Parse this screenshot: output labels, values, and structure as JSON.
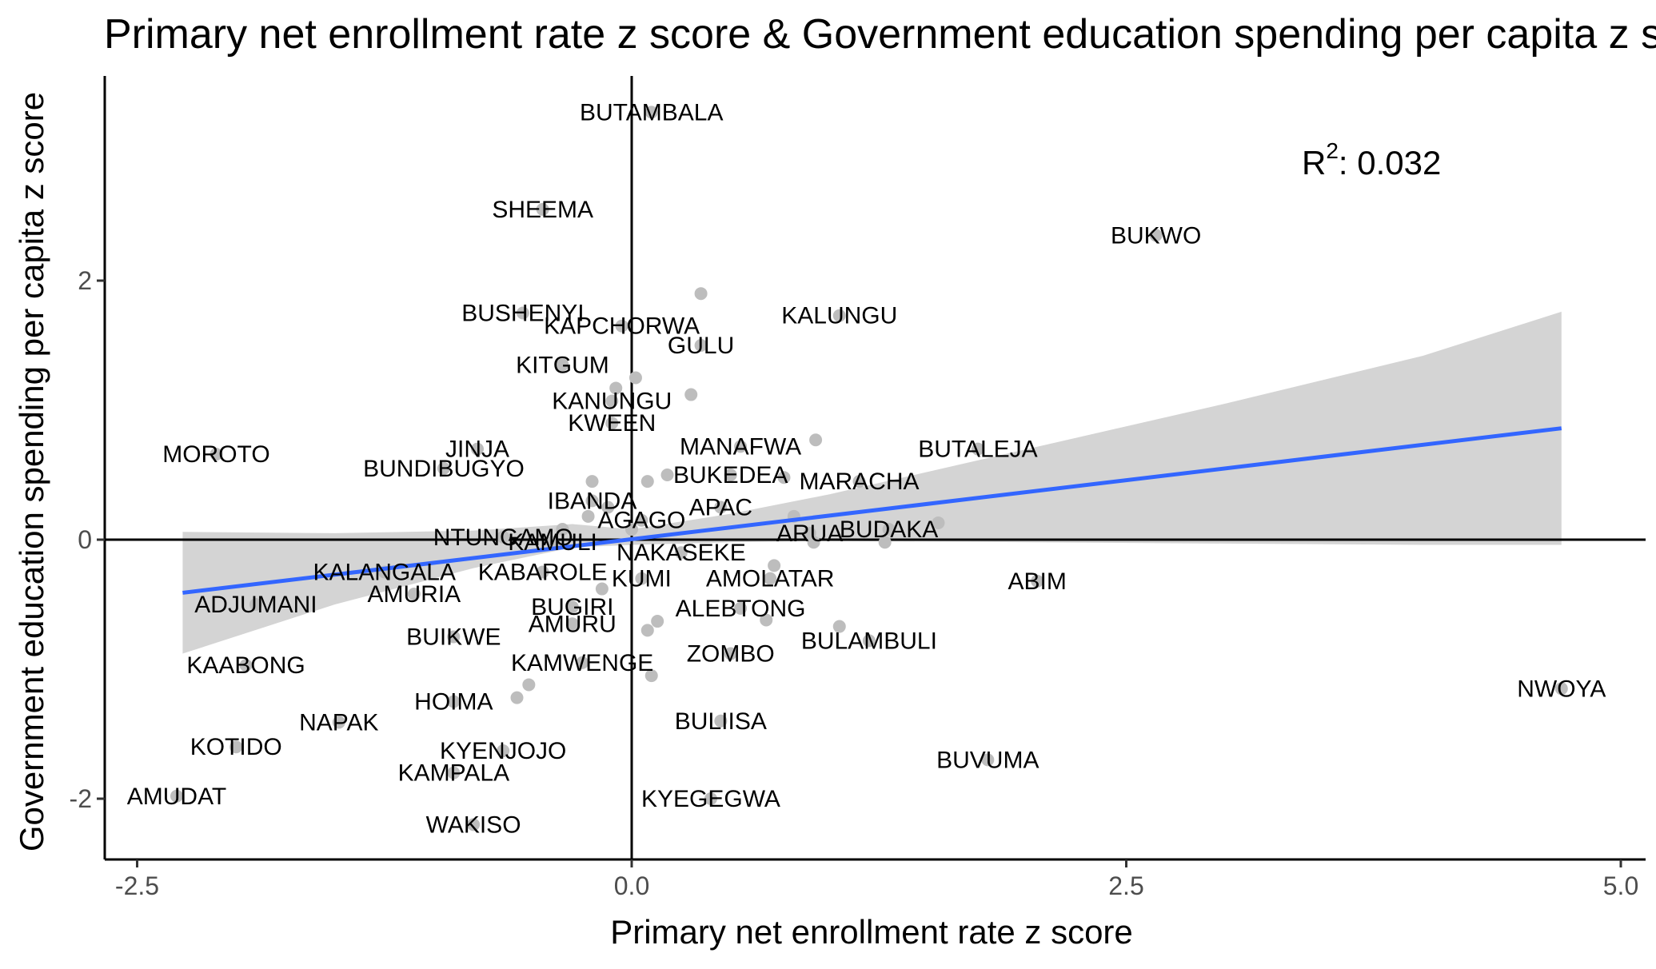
{
  "chart_data": {
    "type": "scatter",
    "title": "Primary net enrollment rate z score & Government education spending per capita z score",
    "xlabel": "Primary net enrollment rate z score",
    "ylabel": "Government education spending per capita z score",
    "xlim": [
      -2.5,
      5.0
    ],
    "ylim": [
      -2.5,
      3.5
    ],
    "x_ticks": [
      -2.5,
      0.0,
      2.5,
      5.0
    ],
    "x_tick_labels": [
      "-2.5",
      "0.0",
      "2.5",
      "5.0"
    ],
    "y_ticks": [
      -2,
      0,
      2
    ],
    "y_tick_labels": [
      "-2",
      "0",
      "2"
    ],
    "grid": false,
    "reference_lines": {
      "x": 0,
      "y": 0
    },
    "annotation": {
      "prefix": "R",
      "superscript": "2",
      "text": ": 0.032"
    },
    "regression": {
      "x_start": -2.27,
      "y_start": -0.41,
      "x_end": 4.7,
      "y_end": 0.86
    },
    "confidence_band": {
      "x": [
        -2.27,
        -1.5,
        -0.8,
        -0.3,
        0.0,
        0.5,
        1.0,
        2.0,
        3.0,
        4.0,
        4.7
      ],
      "lower": [
        -0.88,
        -0.5,
        -0.22,
        -0.06,
        -0.04,
        -0.02,
        -0.01,
        -0.02,
        -0.03,
        -0.04,
        -0.04
      ],
      "upper": [
        0.06,
        0.05,
        0.07,
        0.12,
        0.08,
        0.2,
        0.35,
        0.7,
        1.05,
        1.42,
        1.76
      ]
    },
    "points": [
      {
        "name": "BUTAMBALA",
        "x": 0.1,
        "y": 3.3
      },
      {
        "name": "SHEEMA",
        "x": -0.45,
        "y": 2.55
      },
      {
        "name": "BUKWO",
        "x": 2.65,
        "y": 2.35
      },
      {
        "name": "BUSHENYI",
        "x": -0.55,
        "y": 1.75
      },
      {
        "name": "KAPCHORWA",
        "x": -0.05,
        "y": 1.65
      },
      {
        "name": "KALUNGU",
        "x": 1.05,
        "y": 1.73
      },
      {
        "name": "GULU",
        "x": 0.35,
        "y": 1.5
      },
      {
        "name": "KITGUM",
        "x": -0.35,
        "y": 1.35
      },
      {
        "name": "KANUNGU",
        "x": -0.1,
        "y": 1.07
      },
      {
        "name": "KWEEN",
        "x": -0.1,
        "y": 0.9
      },
      {
        "name": "MOROTO",
        "x": -2.1,
        "y": 0.66
      },
      {
        "name": "JINJA",
        "x": -0.78,
        "y": 0.7
      },
      {
        "name": "MANAFWA",
        "x": 0.55,
        "y": 0.72
      },
      {
        "name": "BUTALEJA",
        "x": 1.75,
        "y": 0.7
      },
      {
        "name": "BUNDIBUGYO",
        "x": -0.95,
        "y": 0.55
      },
      {
        "name": "BUKEDEA",
        "x": 0.5,
        "y": 0.5
      },
      {
        "name": "MARACHA",
        "x": 1.15,
        "y": 0.45
      },
      {
        "name": "IBANDA",
        "x": -0.2,
        "y": 0.3
      },
      {
        "name": "APAC",
        "x": 0.45,
        "y": 0.25
      },
      {
        "name": "AGAGO",
        "x": 0.05,
        "y": 0.15
      },
      {
        "name": "NTUNGAMO",
        "x": -0.65,
        "y": 0.02
      },
      {
        "name": "KAMULI",
        "x": -0.4,
        "y": -0.02
      },
      {
        "name": "ARUA",
        "x": 0.9,
        "y": 0.05
      },
      {
        "name": "BUDAKA",
        "x": 1.3,
        "y": 0.08
      },
      {
        "name": "NAKASEKE",
        "x": 0.25,
        "y": -0.1
      },
      {
        "name": "KALANGALA",
        "x": -1.25,
        "y": -0.25
      },
      {
        "name": "KABAROLE",
        "x": -0.45,
        "y": -0.25
      },
      {
        "name": "KUMI",
        "x": 0.05,
        "y": -0.3
      },
      {
        "name": "AMOLATAR",
        "x": 0.7,
        "y": -0.3
      },
      {
        "name": "ABIM",
        "x": 2.05,
        "y": -0.32
      },
      {
        "name": "AMURIA",
        "x": -1.1,
        "y": -0.42
      },
      {
        "name": "ADJUMANI",
        "x": -1.9,
        "y": -0.5
      },
      {
        "name": "BUGIRI",
        "x": -0.3,
        "y": -0.52
      },
      {
        "name": "ALEBTONG",
        "x": 0.55,
        "y": -0.53
      },
      {
        "name": "AMURU",
        "x": -0.3,
        "y": -0.65
      },
      {
        "name": "BUIKWE",
        "x": -0.9,
        "y": -0.75
      },
      {
        "name": "BULAMBULI",
        "x": 1.2,
        "y": -0.78
      },
      {
        "name": "KAABONG",
        "x": -1.95,
        "y": -0.97
      },
      {
        "name": "ZOMBO",
        "x": 0.5,
        "y": -0.88
      },
      {
        "name": "KAMWENGE",
        "x": -0.25,
        "y": -0.95
      },
      {
        "name": "NWOYA",
        "x": 4.7,
        "y": -1.15
      },
      {
        "name": "HOIMA",
        "x": -0.9,
        "y": -1.25
      },
      {
        "name": "NAPAK",
        "x": -1.48,
        "y": -1.41
      },
      {
        "name": "BULIISA",
        "x": 0.45,
        "y": -1.4
      },
      {
        "name": "KOTIDO",
        "x": -2.0,
        "y": -1.6
      },
      {
        "name": "KYENJOJO",
        "x": -0.65,
        "y": -1.63
      },
      {
        "name": "BUVUMA",
        "x": 1.8,
        "y": -1.7
      },
      {
        "name": "KAMPALA",
        "x": -0.9,
        "y": -1.8
      },
      {
        "name": "AMUDAT",
        "x": -2.3,
        "y": -1.98
      },
      {
        "name": "KYEGEGWA",
        "x": 0.4,
        "y": -2.0
      },
      {
        "name": "WAKISO",
        "x": -0.8,
        "y": -2.2
      }
    ],
    "unlabeled_points": [
      {
        "x": 0.35,
        "y": 1.9
      },
      {
        "x": 0.02,
        "y": 1.25
      },
      {
        "x": -0.08,
        "y": 1.17
      },
      {
        "x": 0.3,
        "y": 1.12
      },
      {
        "x": 0.93,
        "y": 0.77
      },
      {
        "x": 0.18,
        "y": 0.5
      },
      {
        "x": 0.08,
        "y": 0.45
      },
      {
        "x": 0.77,
        "y": 0.48
      },
      {
        "x": -0.2,
        "y": 0.45
      },
      {
        "x": -0.12,
        "y": 0.25
      },
      {
        "x": -0.22,
        "y": 0.18
      },
      {
        "x": 0.82,
        "y": 0.18
      },
      {
        "x": 1.55,
        "y": 0.13
      },
      {
        "x": 0.0,
        "y": 0.08
      },
      {
        "x": 0.92,
        "y": -0.02
      },
      {
        "x": 1.28,
        "y": -0.02
      },
      {
        "x": -0.35,
        "y": 0.08
      },
      {
        "x": -0.15,
        "y": -0.38
      },
      {
        "x": 0.72,
        "y": -0.2
      },
      {
        "x": 0.68,
        "y": -0.62
      },
      {
        "x": 1.05,
        "y": -0.67
      },
      {
        "x": 0.13,
        "y": -0.63
      },
      {
        "x": 0.08,
        "y": -0.7
      },
      {
        "x": -0.52,
        "y": -1.12
      },
      {
        "x": -0.58,
        "y": -1.22
      },
      {
        "x": 0.1,
        "y": -1.05
      }
    ]
  }
}
